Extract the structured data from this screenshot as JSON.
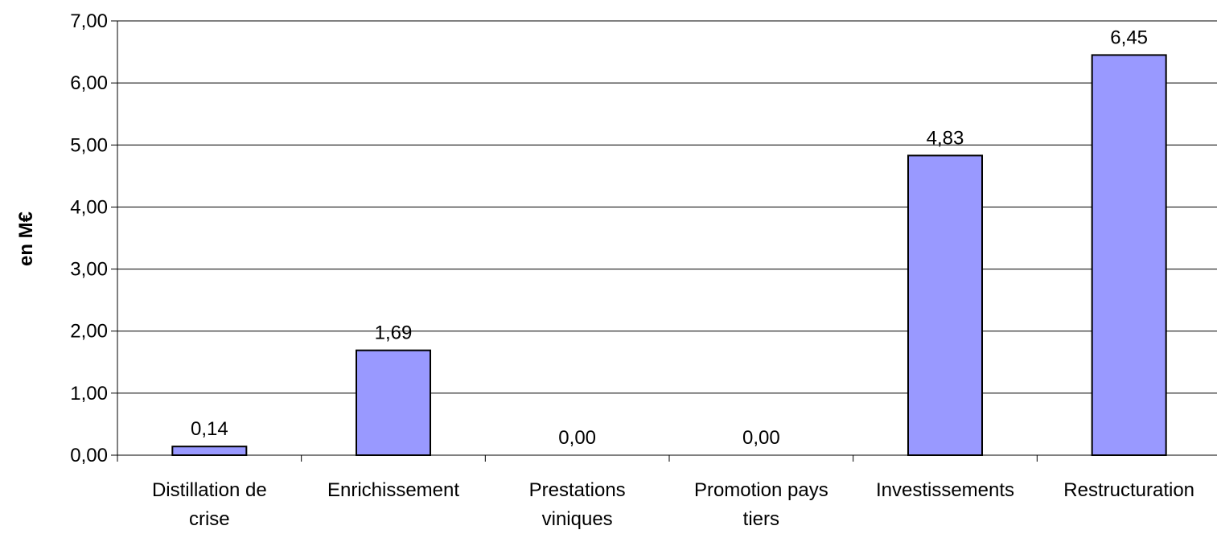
{
  "chart_data": {
    "type": "bar",
    "title": "",
    "xlabel": "",
    "ylabel": "en M€",
    "ylim": [
      0,
      7
    ],
    "ytick_step": 1,
    "ytick_labels": [
      "0,00",
      "1,00",
      "2,00",
      "3,00",
      "4,00",
      "5,00",
      "6,00",
      "7,00"
    ],
    "grid": true,
    "categories": [
      [
        "Distillation de",
        "crise"
      ],
      [
        "Enrichissement"
      ],
      [
        "Prestations",
        "viniques"
      ],
      [
        "Promotion pays",
        "tiers"
      ],
      [
        "Investissements"
      ],
      [
        "Restructuration"
      ]
    ],
    "values": [
      0.14,
      1.69,
      0.0,
      0.0,
      4.83,
      6.45
    ],
    "data_labels": [
      "0,14",
      "1,69",
      "0,00",
      "0,00",
      "4,83",
      "6,45"
    ],
    "bar_color": "#9999ff",
    "bar_edge_color": "#000000"
  }
}
